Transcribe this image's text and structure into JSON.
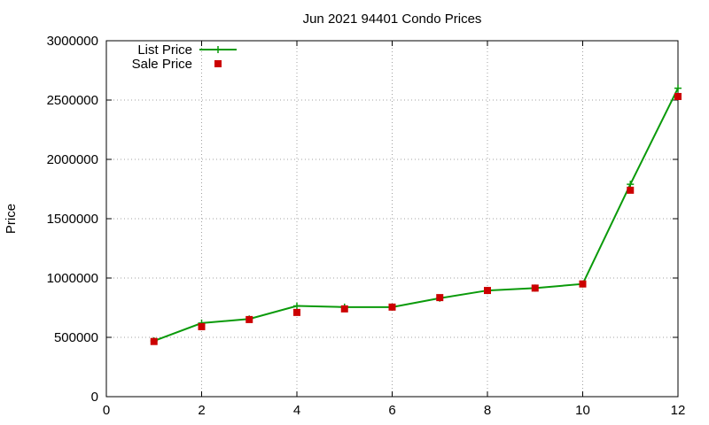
{
  "chart_data": {
    "type": "line",
    "title": "Jun 2021 94401 Condo Prices",
    "xlabel": "",
    "ylabel": "Price",
    "xlim": [
      0,
      12
    ],
    "ylim": [
      0,
      3000000
    ],
    "x_ticks": [
      0,
      2,
      4,
      6,
      8,
      10,
      12
    ],
    "y_ticks": [
      0,
      500000,
      1000000,
      1500000,
      2000000,
      2500000,
      3000000
    ],
    "grid": true,
    "legend_position": "top-left",
    "series": [
      {
        "name": "List Price",
        "style": "line-points",
        "color": "#0a9a0a",
        "x": [
          1,
          2,
          3,
          4,
          5,
          6,
          7,
          8,
          9,
          10,
          11,
          12
        ],
        "values": [
          470000,
          620000,
          655000,
          765000,
          755000,
          755000,
          830000,
          895000,
          915000,
          950000,
          1790000,
          2600000
        ]
      },
      {
        "name": "Sale Price",
        "style": "points",
        "color": "#cc0000",
        "x": [
          1,
          2,
          3,
          4,
          5,
          6,
          7,
          8,
          9,
          10,
          11,
          12
        ],
        "values": [
          465000,
          590000,
          650000,
          710000,
          740000,
          755000,
          835000,
          895000,
          915000,
          950000,
          1740000,
          2530000
        ]
      }
    ]
  }
}
